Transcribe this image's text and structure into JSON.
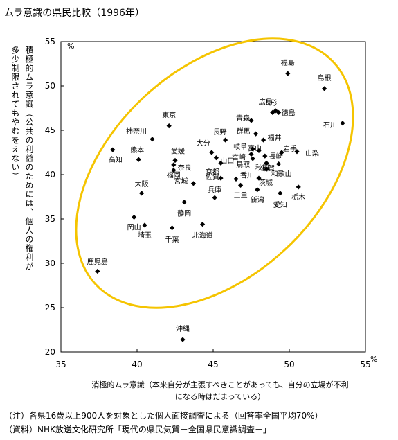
{
  "title": "ムラ意識の県民比較（1996年）",
  "y_label_lines": [
    "積極的ムラ意識（公共の利益のためには、個人の権利が",
    "多少制限されてもやむをえない）"
  ],
  "x_label_lines": [
    "消極的ムラ意識（本来自分が主張すべきことがあっても、自分の立場が不利",
    "になる時はだまっている）"
  ],
  "notes": [
    "（注）各県16歳以上900人を対象とした個人面接調査による（回答率全国平均70%）",
    "（資料）NHK放送文化研究所「現代の県民気質－全国県民意識調査－」"
  ],
  "chart_data": {
    "type": "scatter",
    "title": "ムラ意識の県民比較（1996年）",
    "xlabel": "消極的ムラ意識（本来自分が主張すべきことがあっても、自分の立場が不利になる時はだまっている）",
    "ylabel": "積極的ムラ意識（公共の利益のためには、個人の権利が多少制限されてもやむをえない）",
    "x_unit": "%",
    "y_unit": "%",
    "xlim": [
      35,
      55
    ],
    "ylim": [
      20,
      55
    ],
    "x_ticks": [
      35,
      40,
      45,
      50,
      55
    ],
    "y_ticks": [
      20,
      25,
      30,
      35,
      40,
      45,
      50,
      55
    ],
    "grid": false,
    "marker_color": "#000000",
    "ellipse_color": "#f5c400",
    "points": [
      {
        "label": "福島",
        "x": 49.9,
        "y": 51.4
      },
      {
        "label": "島根",
        "x": 52.3,
        "y": 49.7
      },
      {
        "label": "石川",
        "x": 53.5,
        "y": 45.8
      },
      {
        "label": "広島",
        "x": 48.9,
        "y": 47.0
      },
      {
        "label": "山形",
        "x": 49.1,
        "y": 47.2
      },
      {
        "label": "徳島",
        "x": 49.3,
        "y": 47.0
      },
      {
        "label": "青森",
        "x": 47.5,
        "y": 46.1
      },
      {
        "label": "東京",
        "x": 42.1,
        "y": 45.5
      },
      {
        "label": "神奈川",
        "x": 41.0,
        "y": 44.0
      },
      {
        "label": "長野",
        "x": 45.8,
        "y": 43.9
      },
      {
        "label": "群馬",
        "x": 47.8,
        "y": 44.6
      },
      {
        "label": "福井",
        "x": 48.3,
        "y": 43.9
      },
      {
        "label": "岩手",
        "x": 49.5,
        "y": 42.5
      },
      {
        "label": "山梨",
        "x": 50.5,
        "y": 42.6
      },
      {
        "label": "高知",
        "x": 38.4,
        "y": 42.8
      },
      {
        "label": "熊本",
        "x": 40.1,
        "y": 41.7
      },
      {
        "label": "愛媛",
        "x": 42.5,
        "y": 41.6
      },
      {
        "label": "大分",
        "x": 44.9,
        "y": 42.5
      },
      {
        "label": "岐阜",
        "x": 47.6,
        "y": 42.9
      },
      {
        "label": "富山",
        "x": 48.0,
        "y": 42.7
      },
      {
        "label": "宮崎",
        "x": 47.5,
        "y": 42.3
      },
      {
        "label": "長崎",
        "x": 48.4,
        "y": 42.1
      },
      {
        "label": "山口",
        "x": 45.2,
        "y": 41.9
      },
      {
        "label": "鳥取",
        "x": 47.6,
        "y": 41.8
      },
      {
        "label": "秋田",
        "x": 48.5,
        "y": 41.3
      },
      {
        "label": "和歌山",
        "x": 49.3,
        "y": 41.2
      },
      {
        "label": "京都",
        "x": 45.5,
        "y": 41.3
      },
      {
        "label": "奈良",
        "x": 42.4,
        "y": 40.5
      },
      {
        "label": "福岡",
        "x": 42.4,
        "y": 41.1
      },
      {
        "label": "滋賀",
        "x": 48.5,
        "y": 40.6
      },
      {
        "label": "佐賀",
        "x": 45.5,
        "y": 39.6
      },
      {
        "label": "香川",
        "x": 46.5,
        "y": 39.5
      },
      {
        "label": "茨城",
        "x": 48.0,
        "y": 39.6
      },
      {
        "label": "大阪",
        "x": 40.3,
        "y": 37.9
      },
      {
        "label": "宮城",
        "x": 43.7,
        "y": 39.0
      },
      {
        "label": "三重",
        "x": 46.8,
        "y": 38.8
      },
      {
        "label": "栃木",
        "x": 50.6,
        "y": 38.6
      },
      {
        "label": "新潟",
        "x": 47.9,
        "y": 38.3
      },
      {
        "label": "愛知",
        "x": 49.4,
        "y": 37.9
      },
      {
        "label": "岡山",
        "x": 39.8,
        "y": 35.2
      },
      {
        "label": "静岡",
        "x": 43.1,
        "y": 36.9
      },
      {
        "label": "兵庫",
        "x": 45.1,
        "y": 37.4
      },
      {
        "label": "埼玉",
        "x": 40.5,
        "y": 34.3
      },
      {
        "label": "千葉",
        "x": 42.3,
        "y": 34.0
      },
      {
        "label": "北海道",
        "x": 44.3,
        "y": 34.4
      },
      {
        "label": "鹿児島",
        "x": 37.4,
        "y": 29.1
      },
      {
        "label": "沖縄",
        "x": 43.0,
        "y": 21.4
      }
    ]
  }
}
